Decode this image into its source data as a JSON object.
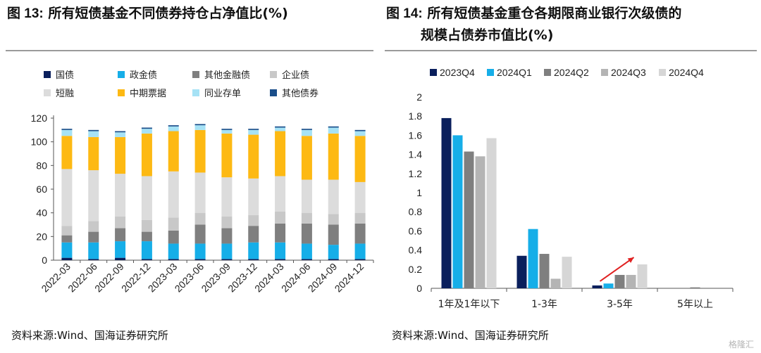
{
  "left": {
    "title_prefix": "图 13:",
    "title_text": "所有短债基金不同债券持仓占净值比(%)",
    "source": "资料来源:Wind、国海证券研究所"
  },
  "right": {
    "title_prefix": "图 14:",
    "title_text": "所有短债基金重仓各期限商业银行次级债的",
    "title_line2": "规模占债券市值比(%)",
    "source": "资料来源:Wind、国海证券研究所"
  },
  "watermark": "格隆汇",
  "chart_data": [
    {
      "type": "bar",
      "stacked": true,
      "ylim": [
        0,
        120
      ],
      "yticks": [
        0,
        20,
        40,
        60,
        80,
        100,
        120
      ],
      "categories": [
        "2022-03",
        "2022-06",
        "2022-09",
        "2022-12",
        "2023-03",
        "2023-06",
        "2023-09",
        "2023-12",
        "2024-03",
        "2024-06",
        "2024-09",
        "2024-12"
      ],
      "legend": [
        "国债",
        "政金债",
        "其他金融债",
        "企业债",
        "短融",
        "中期票据",
        "同业存单",
        "其他债券"
      ],
      "colors": [
        "#0a1f5c",
        "#16aee8",
        "#7f7f7f",
        "#c8c8c8",
        "#dcdcdc",
        "#fdb913",
        "#a6e2f5",
        "#1a4e8a"
      ],
      "series": [
        {
          "name": "国债",
          "values": [
            2,
            1,
            2,
            1,
            1,
            1,
            1,
            1,
            1,
            1,
            1,
            1
          ]
        },
        {
          "name": "政金债",
          "values": [
            13,
            14,
            14,
            15,
            13,
            13,
            13,
            14,
            14,
            13,
            12,
            13
          ]
        },
        {
          "name": "其他金融债",
          "values": [
            6,
            9,
            11,
            8,
            11,
            16,
            13,
            14,
            16,
            17,
            17,
            17
          ]
        },
        {
          "name": "企业债",
          "values": [
            8,
            9,
            10,
            10,
            11,
            10,
            10,
            9,
            10,
            9,
            9,
            9
          ]
        },
        {
          "name": "短融",
          "values": [
            48,
            43,
            36,
            37,
            39,
            34,
            33,
            31,
            30,
            28,
            29,
            26
          ]
        },
        {
          "name": "中期票据",
          "values": [
            28,
            28,
            31,
            36,
            34,
            36,
            37,
            37,
            38,
            37,
            39,
            39
          ]
        },
        {
          "name": "同业存单",
          "values": [
            5,
            5,
            4,
            4,
            4,
            4,
            3,
            4,
            3,
            5,
            5,
            4
          ]
        },
        {
          "name": "其他债券",
          "values": [
            1,
            1,
            1,
            1,
            1,
            1,
            1,
            1,
            1,
            1,
            1,
            1
          ]
        }
      ]
    },
    {
      "type": "bar",
      "ylim": [
        0,
        2
      ],
      "yticks": [
        "0",
        "0.2",
        "0.4",
        "0.6",
        "0.8",
        "1",
        "1.2",
        "1.4",
        "1.6",
        "1.8",
        "2"
      ],
      "categories": [
        "1年及1年以下",
        "1-3年",
        "3-5年",
        "5年以上"
      ],
      "legend": [
        "2023Q4",
        "2024Q1",
        "2024Q2",
        "2024Q3",
        "2024Q4"
      ],
      "colors": [
        "#0a1f5c",
        "#16aee8",
        "#7f7f7f",
        "#b4b4b4",
        "#d6d6d6"
      ],
      "series": [
        {
          "name": "2023Q4",
          "values": [
            1.78,
            0.34,
            0.03,
            0.0
          ]
        },
        {
          "name": "2024Q1",
          "values": [
            1.6,
            0.62,
            0.05,
            0.0
          ]
        },
        {
          "name": "2024Q2",
          "values": [
            1.43,
            0.36,
            0.14,
            0.01
          ]
        },
        {
          "name": "2024Q3",
          "values": [
            1.38,
            0.1,
            0.14,
            0.0
          ]
        },
        {
          "name": "2024Q4",
          "values": [
            1.57,
            0.33,
            0.25,
            0.0
          ]
        }
      ],
      "annotation": "red-arrow-trend-3-5年"
    }
  ]
}
